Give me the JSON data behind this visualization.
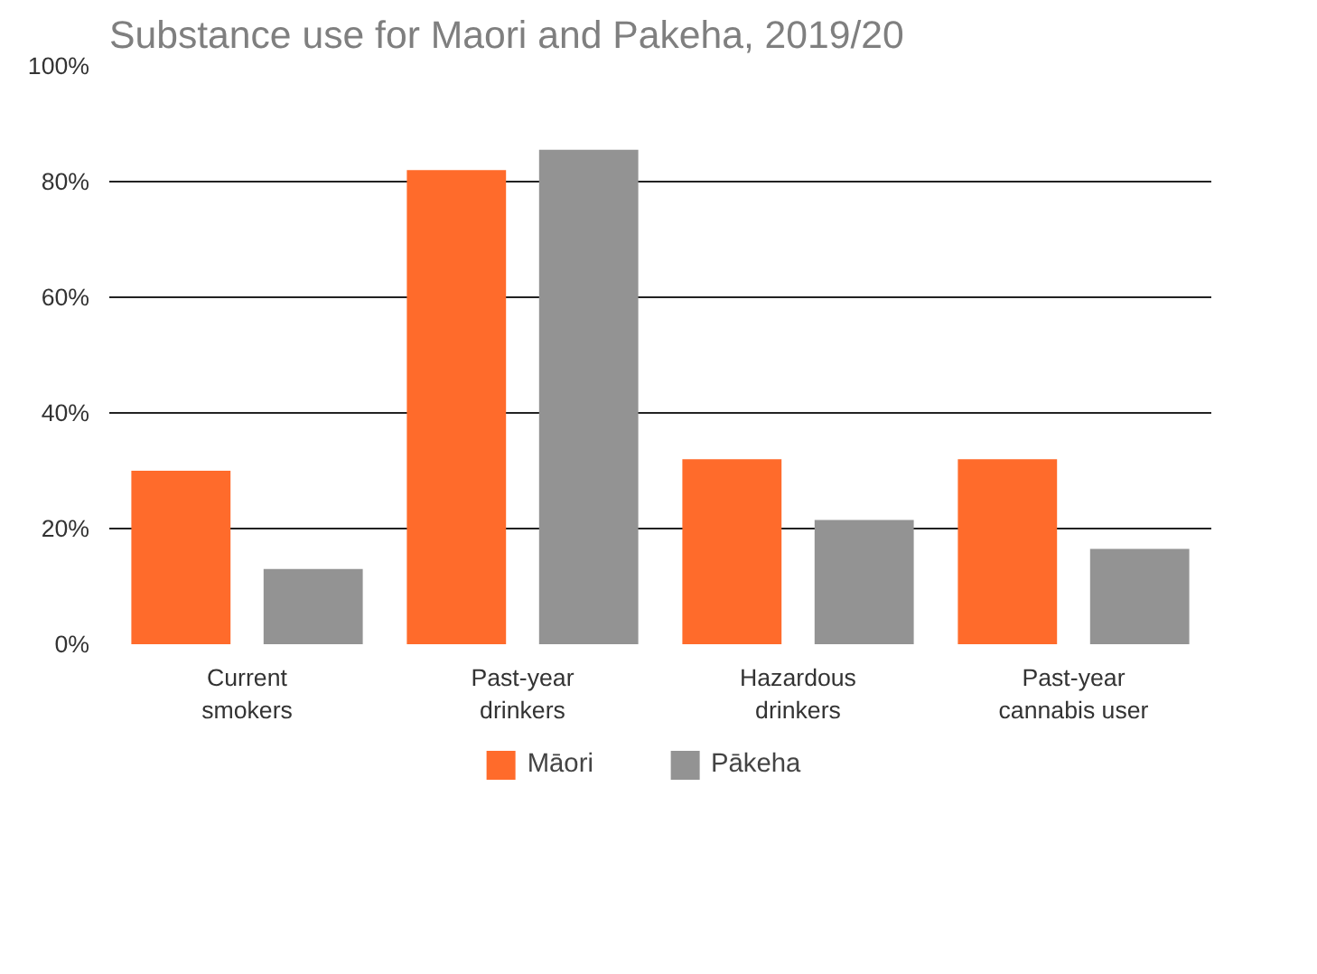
{
  "chart_data": {
    "type": "bar",
    "title": "Substance use for Maori and Pakeha, 2019/20",
    "categories": [
      "Current\nsmokers",
      "Past-year\ndrinkers",
      "Hazardous\ndrinkers",
      "Past-year\ncannabis user"
    ],
    "series": [
      {
        "name": "Māori",
        "color": "#ff6b2b",
        "values": [
          30,
          82,
          32,
          32
        ]
      },
      {
        "name": "Pākeha",
        "color": "#939393",
        "values": [
          13,
          85.5,
          21.5,
          16.5
        ]
      }
    ],
    "ylim": [
      0,
      100
    ],
    "yticks": [
      {
        "value": 0,
        "label": "0%"
      },
      {
        "value": 20,
        "label": "20%"
      },
      {
        "value": 40,
        "label": "40%"
      },
      {
        "value": 60,
        "label": "60%"
      },
      {
        "value": 80,
        "label": "80%"
      },
      {
        "value": 100,
        "label": "100%"
      }
    ],
    "grid": "y",
    "legend": "bottom"
  }
}
